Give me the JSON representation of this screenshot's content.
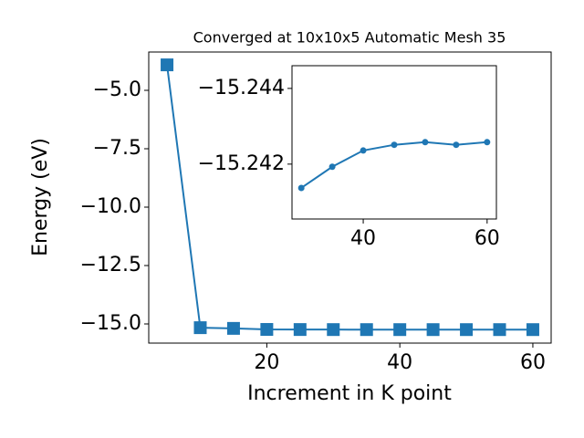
{
  "chart_data": [
    {
      "type": "line",
      "title": "Converged at 10x10x5 Automatic Mesh 35",
      "x_label": "Increment in K point",
      "y_label": "Energy (eV)",
      "x": [
        5,
        10,
        15,
        20,
        25,
        30,
        35,
        40,
        45,
        50,
        55,
        60
      ],
      "series": [
        {
          "color": "#1f77b4",
          "marker": "square",
          "values": [
            -3.91,
            -15.16,
            -15.19,
            -15.235,
            -15.239,
            -15.24137,
            -15.24193,
            -15.24236,
            -15.24251,
            -15.24258,
            -15.24251,
            -15.24258
          ]
        }
      ],
      "xlim": [
        2.25,
        62.75
      ],
      "xticks": [
        20,
        40,
        60
      ],
      "ylim": [
        -15.82,
        -3.36
      ],
      "yticks": [
        {
          "value": -15,
          "label": "−15.0"
        },
        {
          "value": -12.5,
          "label": "−12.5"
        },
        {
          "value": -10,
          "label": "−10.0"
        },
        {
          "value": -7.5,
          "label": "−7.5"
        },
        {
          "value": -5,
          "label": "−5.0"
        }
      ]
    },
    {
      "type": "line",
      "x": [
        30,
        35,
        40,
        45,
        50,
        55,
        60
      ],
      "series": [
        {
          "color": "#1f77b4",
          "marker": "circle",
          "values": [
            -15.24137,
            -15.24193,
            -15.24236,
            -15.24251,
            -15.24258,
            -15.24251,
            -15.24258
          ]
        }
      ],
      "xlim": [
        28.5,
        61.5
      ],
      "xticks": [
        40,
        60
      ],
      "ylim": [
        -15.24055,
        -15.2446
      ],
      "yticks": [
        {
          "value": -15.244,
          "label": "−15.244"
        },
        {
          "value": -15.242,
          "label": "−15.242"
        }
      ]
    }
  ]
}
